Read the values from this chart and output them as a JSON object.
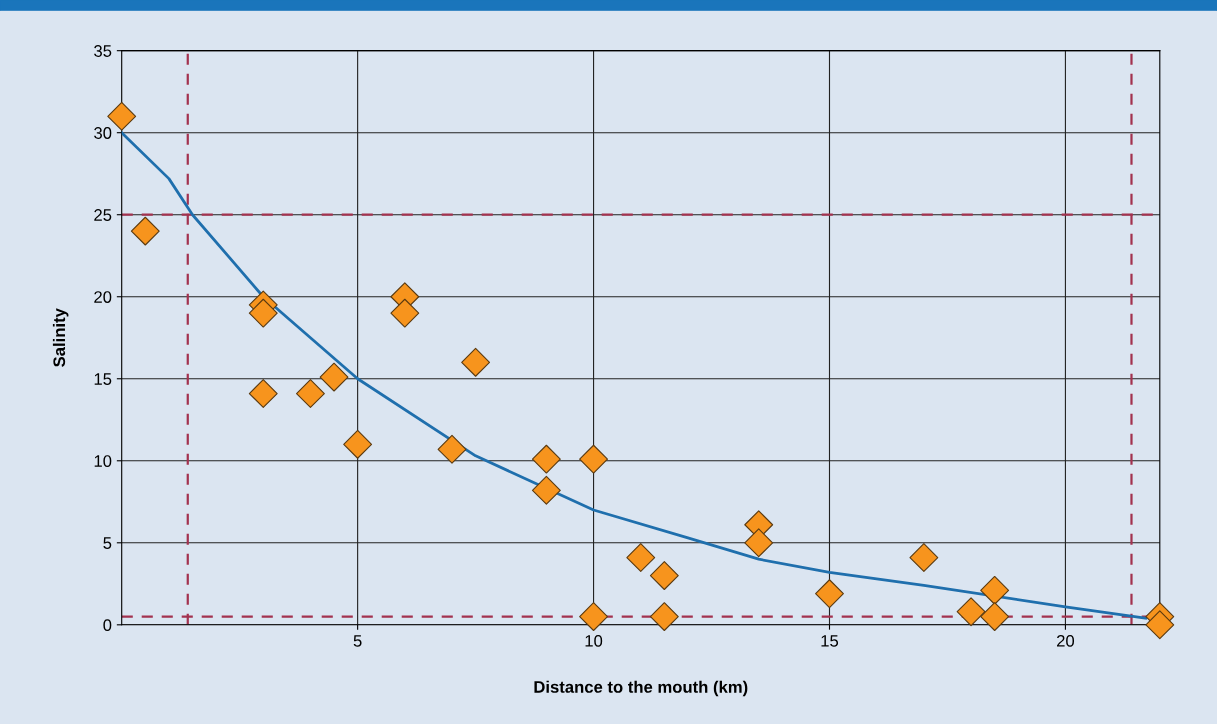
{
  "chart_data": {
    "type": "scatter",
    "xlabel": "Distance to the mouth (km)",
    "ylabel": "Salinity",
    "x": [
      0,
      0.5,
      3,
      3,
      3,
      4,
      4.5,
      5,
      6,
      6,
      7.5,
      7,
      9,
      9,
      10,
      10,
      11,
      11.5,
      11.5,
      13.5,
      13.5,
      15,
      17,
      18,
      18.5,
      18.5,
      22,
      22
    ],
    "series": [
      {
        "color": "#f7941d",
        "values": [
          31.0,
          24.0,
          19.5,
          19.0,
          14.1,
          14.1,
          15.1,
          11.0,
          20.0,
          19.0,
          16.0,
          10.7,
          10.1,
          8.2,
          10.1,
          0.5,
          4.1,
          3.0,
          0.5,
          6.1,
          5.0,
          1.9,
          4.1,
          0.8,
          2.1,
          0.5,
          0.5,
          0.0
        ]
      },
      {
        "type": "line",
        "color": "#1f6fad",
        "marker": "none",
        "x": [
          0,
          1,
          1.5,
          3,
          5,
          7.5,
          10,
          12,
          13.5,
          15,
          17,
          20,
          21.7
        ],
        "values": [
          30,
          27.2,
          25,
          20,
          15,
          10.3,
          7,
          5.3,
          4,
          3.2,
          2.4,
          1.1,
          0.4
        ]
      }
    ],
    "marker": "diamond",
    "xlim": [
      0,
      22
    ],
    "ylim": [
      0,
      35
    ],
    "xticks": [
      5,
      10,
      15,
      20
    ],
    "yticks": [
      0,
      5,
      10,
      15,
      20,
      25,
      30,
      35
    ],
    "grid": true,
    "legend": false,
    "ref_lines": [
      {
        "axis": "y",
        "value": 25,
        "color": "#a3324f",
        "line_style": "dashed"
      },
      {
        "axis": "y",
        "value": 0.5,
        "color": "#a3324f",
        "line_style": "dashed"
      },
      {
        "axis": "x",
        "value": 1.4,
        "color": "#a3324f",
        "line_style": "dashed"
      },
      {
        "axis": "x",
        "value": 21.4,
        "color": "#a3324f",
        "line_style": "dashed"
      }
    ]
  }
}
